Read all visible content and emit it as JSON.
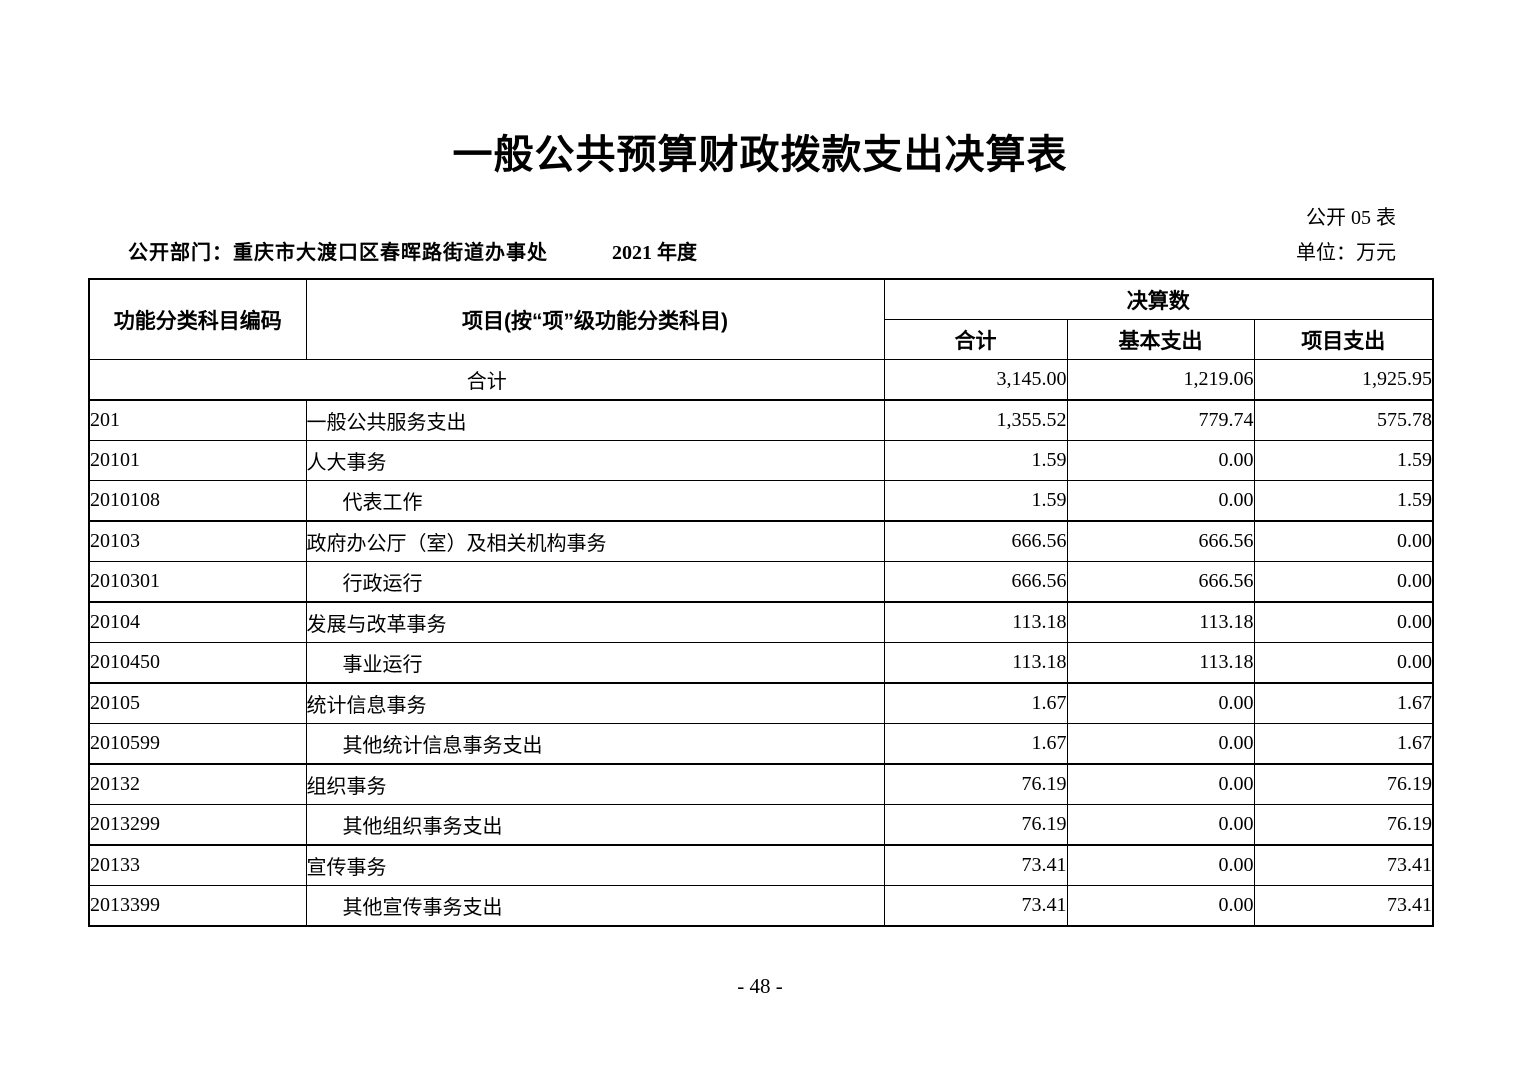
{
  "page": {
    "title": "一般公共预算财政拨款支出决算表",
    "table_code": "公开 05 表",
    "department_label": "公开部门：重庆市大渡口区春晖路街道办事处",
    "fiscal_year": "2021 年度",
    "unit_label": "单位：万元",
    "page_number": "- 48 -"
  },
  "table": {
    "headers": {
      "code": "功能分类科目编码",
      "project": "项目(按“项”级功能分类科目)",
      "final_accounts": "决算数",
      "total": "合计",
      "basic_expenditure": "基本支出",
      "project_expenditure": "项目支出"
    },
    "rows": [
      {
        "code": "",
        "name": "合计",
        "level": "total",
        "total": "3,145.00",
        "basic": "1,219.06",
        "project": "1,925.95"
      },
      {
        "code": "201",
        "name": "一般公共服务支出",
        "level": "type",
        "total": "1,355.52",
        "basic": "779.74",
        "project": "575.78"
      },
      {
        "code": "20101",
        "name": "人大事务",
        "level": "class",
        "total": "1.59",
        "basic": "0.00",
        "project": "1.59"
      },
      {
        "code": "2010108",
        "name": "代表工作",
        "level": "item",
        "total": "1.59",
        "basic": "0.00",
        "project": "1.59"
      },
      {
        "code": "20103",
        "name": "政府办公厅（室）及相关机构事务",
        "level": "class",
        "total": "666.56",
        "basic": "666.56",
        "project": "0.00"
      },
      {
        "code": "2010301",
        "name": "行政运行",
        "level": "item",
        "total": "666.56",
        "basic": "666.56",
        "project": "0.00"
      },
      {
        "code": "20104",
        "name": "发展与改革事务",
        "level": "class",
        "total": "113.18",
        "basic": "113.18",
        "project": "0.00"
      },
      {
        "code": "2010450",
        "name": "事业运行",
        "level": "item",
        "total": "113.18",
        "basic": "113.18",
        "project": "0.00"
      },
      {
        "code": "20105",
        "name": "统计信息事务",
        "level": "class",
        "total": "1.67",
        "basic": "0.00",
        "project": "1.67"
      },
      {
        "code": "2010599",
        "name": "其他统计信息事务支出",
        "level": "item",
        "total": "1.67",
        "basic": "0.00",
        "project": "1.67"
      },
      {
        "code": "20132",
        "name": "组织事务",
        "level": "class",
        "total": "76.19",
        "basic": "0.00",
        "project": "76.19"
      },
      {
        "code": "2013299",
        "name": "其他组织事务支出",
        "level": "item",
        "total": "76.19",
        "basic": "0.00",
        "project": "76.19"
      },
      {
        "code": "20133",
        "name": "宣传事务",
        "level": "class",
        "total": "73.41",
        "basic": "0.00",
        "project": "73.41"
      },
      {
        "code": "2013399",
        "name": "其他宣传事务支出",
        "level": "item",
        "total": "73.41",
        "basic": "0.00",
        "project": "73.41"
      }
    ]
  }
}
